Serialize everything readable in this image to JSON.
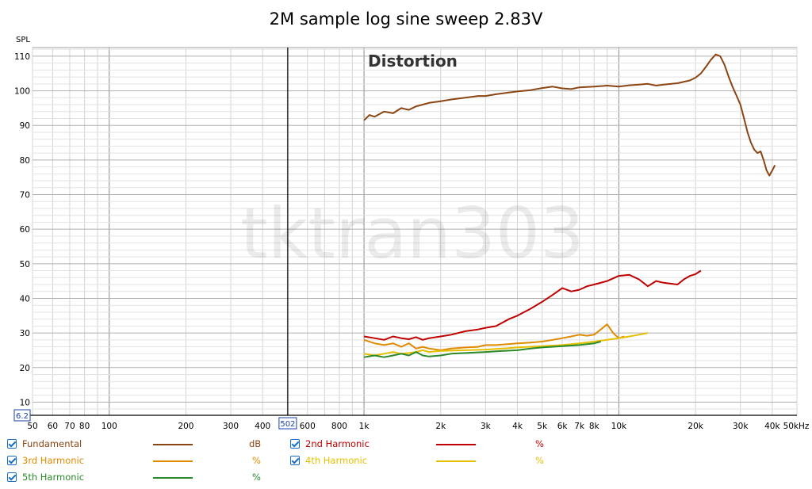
{
  "chart_data": {
    "type": "line",
    "title": "2M sample log sine sweep 2.83V",
    "annotation": "Distortion",
    "watermark": "tktran303",
    "ylabel": "SPL",
    "xunit_label": "50kHz",
    "x_scale": "log",
    "xlim": [
      50,
      50000
    ],
    "ylim": [
      6.2,
      112.5
    ],
    "cursor_x": 502,
    "cursor_x_label": "502",
    "cursor_y": 6.2,
    "cursor_y_label": "6.2",
    "x_ticks": [
      {
        "v": 50,
        "label": "50"
      },
      {
        "v": 60,
        "label": "60"
      },
      {
        "v": 70,
        "label": "70"
      },
      {
        "v": 80,
        "label": "80"
      },
      {
        "v": 100,
        "label": "100"
      },
      {
        "v": 200,
        "label": "200"
      },
      {
        "v": 300,
        "label": "300"
      },
      {
        "v": 400,
        "label": "400"
      },
      {
        "v": 600,
        "label": "600"
      },
      {
        "v": 800,
        "label": "800"
      },
      {
        "v": 1000,
        "label": "1k"
      },
      {
        "v": 2000,
        "label": "2k"
      },
      {
        "v": 3000,
        "label": "3k"
      },
      {
        "v": 4000,
        "label": "4k"
      },
      {
        "v": 5000,
        "label": "5k"
      },
      {
        "v": 6000,
        "label": "6k"
      },
      {
        "v": 7000,
        "label": "7k"
      },
      {
        "v": 8000,
        "label": "8k"
      },
      {
        "v": 10000,
        "label": "10k"
      },
      {
        "v": 20000,
        "label": "20k"
      },
      {
        "v": 30000,
        "label": "30k"
      },
      {
        "v": 40000,
        "label": "40k"
      }
    ],
    "y_ticks": [
      10,
      20,
      30,
      40,
      50,
      60,
      70,
      80,
      90,
      100,
      110
    ],
    "grid": true,
    "legend_position": "bottom",
    "series": [
      {
        "name": "Fundamental",
        "unit": "dB",
        "color": "#8b4513",
        "points": [
          [
            1000,
            91.5
          ],
          [
            1050,
            93
          ],
          [
            1100,
            92.5
          ],
          [
            1200,
            94
          ],
          [
            1300,
            93.5
          ],
          [
            1400,
            95
          ],
          [
            1500,
            94.5
          ],
          [
            1600,
            95.5
          ],
          [
            1700,
            96
          ],
          [
            1800,
            96.5
          ],
          [
            2000,
            97
          ],
          [
            2200,
            97.5
          ],
          [
            2500,
            98
          ],
          [
            2800,
            98.5
          ],
          [
            3000,
            98.5
          ],
          [
            3300,
            99
          ],
          [
            3700,
            99.5
          ],
          [
            4000,
            99.8
          ],
          [
            4500,
            100.2
          ],
          [
            5000,
            100.8
          ],
          [
            5500,
            101.2
          ],
          [
            6000,
            100.7
          ],
          [
            6500,
            100.5
          ],
          [
            7000,
            101
          ],
          [
            8000,
            101.2
          ],
          [
            9000,
            101.5
          ],
          [
            10000,
            101.2
          ],
          [
            11000,
            101.6
          ],
          [
            12000,
            101.8
          ],
          [
            13000,
            102
          ],
          [
            14000,
            101.5
          ],
          [
            15000,
            101.8
          ],
          [
            17000,
            102.2
          ],
          [
            19000,
            103
          ],
          [
            20000,
            103.8
          ],
          [
            21000,
            105
          ],
          [
            22000,
            107
          ],
          [
            23000,
            109
          ],
          [
            24000,
            110.5
          ],
          [
            25000,
            110
          ],
          [
            26000,
            107.5
          ],
          [
            27000,
            104
          ],
          [
            28000,
            101
          ],
          [
            29000,
            98.5
          ],
          [
            30000,
            96
          ],
          [
            31000,
            92
          ],
          [
            32000,
            88
          ],
          [
            33000,
            85
          ],
          [
            34000,
            83
          ],
          [
            35000,
            82
          ],
          [
            36000,
            82.5
          ],
          [
            37000,
            80
          ],
          [
            38000,
            77
          ],
          [
            39000,
            75.5
          ],
          [
            40000,
            77
          ],
          [
            41000,
            78.5
          ]
        ]
      },
      {
        "name": "2nd Harmonic",
        "unit": "%",
        "color": "#c00000",
        "points": [
          [
            1000,
            29
          ],
          [
            1100,
            28.5
          ],
          [
            1200,
            28
          ],
          [
            1300,
            29
          ],
          [
            1400,
            28.5
          ],
          [
            1500,
            28.2
          ],
          [
            1600,
            28.8
          ],
          [
            1700,
            28
          ],
          [
            1800,
            28.5
          ],
          [
            2000,
            29
          ],
          [
            2200,
            29.5
          ],
          [
            2500,
            30.5
          ],
          [
            2800,
            31
          ],
          [
            3000,
            31.5
          ],
          [
            3300,
            32
          ],
          [
            3700,
            34
          ],
          [
            4000,
            35
          ],
          [
            4500,
            37
          ],
          [
            5000,
            39
          ],
          [
            5500,
            41
          ],
          [
            6000,
            43
          ],
          [
            6500,
            42
          ],
          [
            7000,
            42.5
          ],
          [
            7500,
            43.5
          ],
          [
            8000,
            44
          ],
          [
            9000,
            45
          ],
          [
            10000,
            46.5
          ],
          [
            11000,
            46.8
          ],
          [
            12000,
            45.5
          ],
          [
            13000,
            43.5
          ],
          [
            14000,
            45
          ],
          [
            15000,
            44.5
          ],
          [
            17000,
            44
          ],
          [
            18000,
            45.5
          ],
          [
            19000,
            46.5
          ],
          [
            20000,
            47
          ],
          [
            21000,
            48
          ]
        ]
      },
      {
        "name": "3rd Harmonic",
        "unit": "%",
        "color": "#e08a00",
        "points": [
          [
            1000,
            28
          ],
          [
            1100,
            27
          ],
          [
            1200,
            26.5
          ],
          [
            1300,
            27
          ],
          [
            1400,
            26
          ],
          [
            1500,
            27
          ],
          [
            1600,
            25.5
          ],
          [
            1700,
            26
          ],
          [
            1800,
            25.5
          ],
          [
            2000,
            25
          ],
          [
            2200,
            25.5
          ],
          [
            2500,
            25.8
          ],
          [
            2800,
            26
          ],
          [
            3000,
            26.5
          ],
          [
            3300,
            26.5
          ],
          [
            3700,
            26.8
          ],
          [
            4000,
            27
          ],
          [
            4500,
            27.2
          ],
          [
            5000,
            27.5
          ],
          [
            5500,
            28
          ],
          [
            6000,
            28.5
          ],
          [
            6500,
            29
          ],
          [
            7000,
            29.5
          ],
          [
            7500,
            29.2
          ],
          [
            8000,
            29.5
          ],
          [
            8500,
            31
          ],
          [
            9000,
            32.5
          ],
          [
            9500,
            30
          ],
          [
            10000,
            28.5
          ],
          [
            10500,
            29
          ]
        ]
      },
      {
        "name": "4th Harmonic",
        "unit": "%",
        "color": "#e6c000",
        "points": [
          [
            1000,
            24
          ],
          [
            1100,
            23.5
          ],
          [
            1200,
            24
          ],
          [
            1300,
            24.5
          ],
          [
            1400,
            24
          ],
          [
            1500,
            24.2
          ],
          [
            1600,
            24.5
          ],
          [
            1700,
            25
          ],
          [
            1800,
            24.5
          ],
          [
            2000,
            24.8
          ],
          [
            2500,
            25
          ],
          [
            3000,
            25.2
          ],
          [
            3500,
            25.5
          ],
          [
            4000,
            25.8
          ],
          [
            5000,
            26.2
          ],
          [
            6000,
            26.5
          ],
          [
            7000,
            27
          ],
          [
            8000,
            27.5
          ],
          [
            9000,
            28
          ],
          [
            10000,
            28.5
          ],
          [
            11000,
            29
          ],
          [
            12000,
            29.5
          ],
          [
            13000,
            30
          ]
        ]
      },
      {
        "name": "5th Harmonic",
        "unit": "%",
        "color": "#2a8a2a",
        "points": [
          [
            1000,
            23
          ],
          [
            1100,
            23.5
          ],
          [
            1200,
            23
          ],
          [
            1300,
            23.5
          ],
          [
            1400,
            24
          ],
          [
            1500,
            23.5
          ],
          [
            1600,
            24.5
          ],
          [
            1700,
            23.5
          ],
          [
            1800,
            23.2
          ],
          [
            2000,
            23.5
          ],
          [
            2200,
            24
          ],
          [
            2500,
            24.2
          ],
          [
            3000,
            24.5
          ],
          [
            3500,
            24.8
          ],
          [
            4000,
            25
          ],
          [
            4500,
            25.5
          ],
          [
            5000,
            25.8
          ],
          [
            6000,
            26.2
          ],
          [
            7000,
            26.5
          ],
          [
            8000,
            27
          ],
          [
            8500,
            27.5
          ]
        ]
      }
    ]
  }
}
